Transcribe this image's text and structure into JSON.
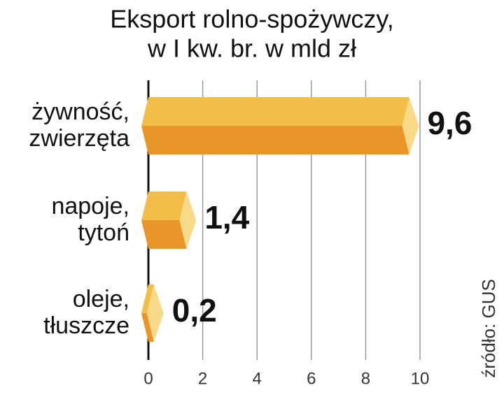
{
  "chart_data": {
    "type": "bar",
    "orientation": "horizontal",
    "title": [
      "Eksport rolno-spożywczy,",
      "w I kw. br. w mld zł"
    ],
    "categories": [
      [
        "żywność,",
        "zwierzęta"
      ],
      [
        "napoje,",
        "tytoń"
      ],
      [
        "oleje,",
        "tłuszcze"
      ]
    ],
    "values": [
      9.6,
      1.4,
      0.2
    ],
    "value_labels": [
      "9,6",
      "1,4",
      "0,2"
    ],
    "color": "#f4bd48",
    "color_dark": "#e8962a",
    "color_cap": "#f8d98a",
    "xlim": [
      0,
      10
    ],
    "xticks": [
      0,
      2,
      4,
      6,
      8,
      10
    ],
    "grid": true,
    "source": "źródło: GUS"
  }
}
